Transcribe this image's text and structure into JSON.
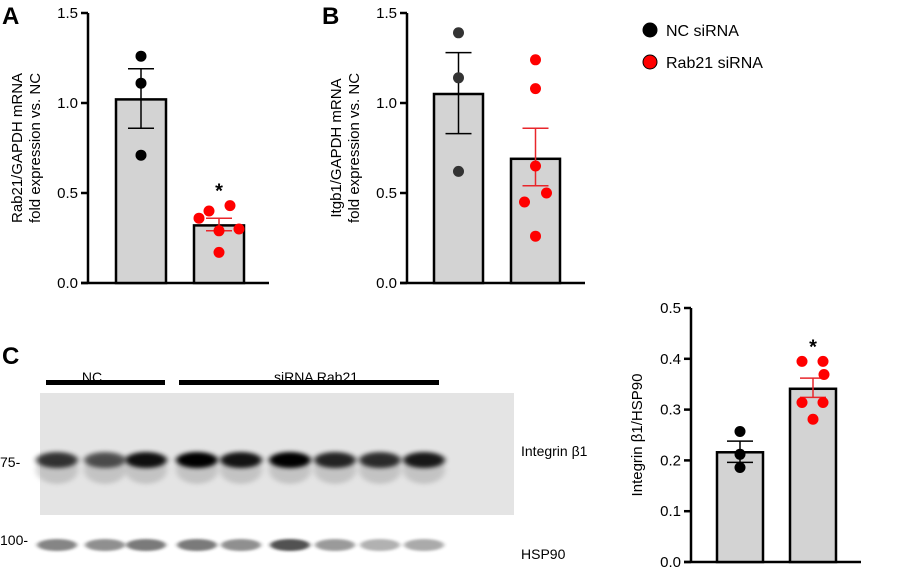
{
  "legend": [
    {
      "label": "NC siRNA",
      "color": "#000000"
    },
    {
      "label": "Rab21 siRNA",
      "color": "#ff0000"
    }
  ],
  "panels": {
    "a": "A",
    "b": "B",
    "c": "C"
  },
  "blot": {
    "groups": [
      "NC",
      "siRNA Rab21"
    ],
    "markers": [
      "75-",
      "100-"
    ],
    "bands": [
      "Integrin β1",
      "HSP90"
    ]
  },
  "chart_data": [
    {
      "type": "bar",
      "panel": "A",
      "ylabel": [
        "Rab21/GAPDH mRNA",
        "fold expression vs. NC"
      ],
      "ylim": [
        0,
        1.5
      ],
      "yticks": [
        "0.0",
        "0.5",
        "1.0",
        "1.5"
      ],
      "series": [
        {
          "name": "NC siRNA",
          "mean": 1.02,
          "sem_low": 0.86,
          "sem_high": 1.19,
          "points": [
            1.26,
            1.11,
            0.71
          ],
          "color": "#000000"
        },
        {
          "name": "Rab21 siRNA",
          "mean": 0.32,
          "sem_low": 0.29,
          "sem_high": 0.36,
          "points": [
            0.36,
            0.4,
            0.43,
            0.29,
            0.3,
            0.17
          ],
          "color": "#ff0000",
          "annotation": "*"
        }
      ]
    },
    {
      "type": "bar",
      "panel": "B",
      "ylabel": [
        "Itgb1/GAPDH mRNA",
        "fold expression vs. NC"
      ],
      "ylim": [
        0,
        1.5
      ],
      "yticks": [
        "0.0",
        "0.5",
        "1.0",
        "1.5"
      ],
      "series": [
        {
          "name": "NC siRNA",
          "mean": 1.05,
          "sem_low": 0.83,
          "sem_high": 1.28,
          "points": [
            1.39,
            1.14,
            0.62
          ],
          "color": "#333333"
        },
        {
          "name": "Rab21 siRNA",
          "mean": 0.69,
          "sem_low": 0.54,
          "sem_high": 0.86,
          "points": [
            1.24,
            1.08,
            0.65,
            0.5,
            0.45,
            0.26
          ],
          "color": "#ff0000"
        }
      ]
    },
    {
      "type": "bar",
      "panel": "C",
      "ylabel": [
        "Integrin β1/HSP90"
      ],
      "ylim": [
        0,
        0.5
      ],
      "yticks": [
        "0.0",
        "0.1",
        "0.2",
        "0.3",
        "0.4",
        "0.5"
      ],
      "series": [
        {
          "name": "NC siRNA",
          "mean": 0.216,
          "sem_low": 0.196,
          "sem_high": 0.238,
          "points": [
            0.257,
            0.212,
            0.186
          ],
          "color": "#000000"
        },
        {
          "name": "Rab21 siRNA",
          "mean": 0.341,
          "sem_low": 0.324,
          "sem_high": 0.362,
          "points": [
            0.395,
            0.395,
            0.369,
            0.314,
            0.314,
            0.281
          ],
          "color": "#ff0000",
          "annotation": "*"
        }
      ]
    }
  ]
}
